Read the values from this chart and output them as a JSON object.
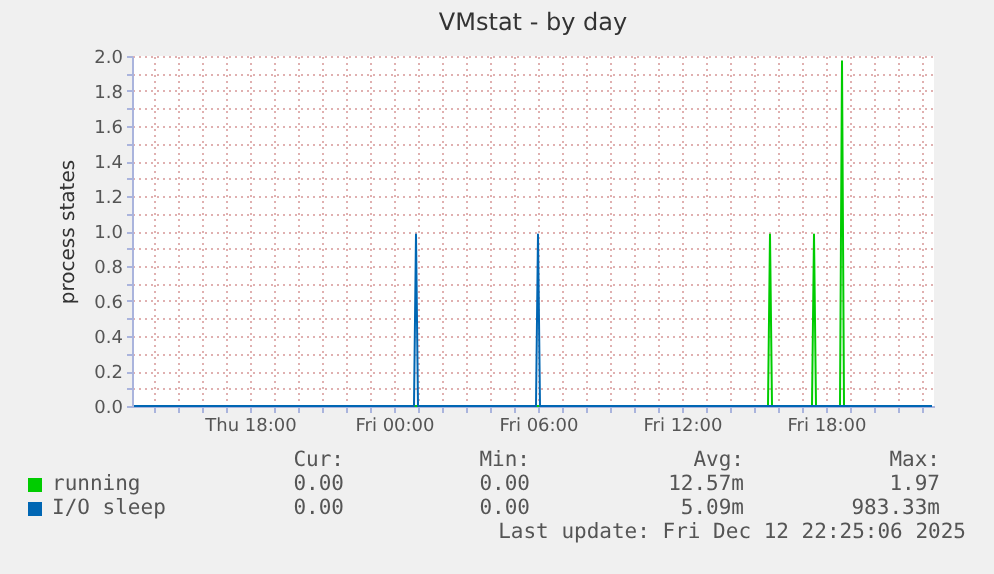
{
  "chart_data": {
    "type": "line",
    "title": "VMstat - by day",
    "ylabel": "process states",
    "xlim": [
      "2025-12-11T13:05",
      "2025-12-12T22:30"
    ],
    "ylim": [
      0,
      2
    ],
    "xticks": [
      {
        "value": "2025-12-11T14:00",
        "label": null
      },
      {
        "value": "2025-12-11T15:00",
        "label": null
      },
      {
        "value": "2025-12-11T16:00",
        "label": null
      },
      {
        "value": "2025-12-11T17:00",
        "label": null
      },
      {
        "value": "2025-12-11T18:00",
        "label": "Thu 18:00"
      },
      {
        "value": "2025-12-11T19:00",
        "label": null
      },
      {
        "value": "2025-12-11T20:00",
        "label": null
      },
      {
        "value": "2025-12-11T21:00",
        "label": null
      },
      {
        "value": "2025-12-11T22:00",
        "label": null
      },
      {
        "value": "2025-12-11T23:00",
        "label": null
      },
      {
        "value": "2025-12-12T00:00",
        "label": "Fri 00:00"
      },
      {
        "value": "2025-12-12T01:00",
        "label": null
      },
      {
        "value": "2025-12-12T02:00",
        "label": null
      },
      {
        "value": "2025-12-12T03:00",
        "label": null
      },
      {
        "value": "2025-12-12T04:00",
        "label": null
      },
      {
        "value": "2025-12-12T05:00",
        "label": null
      },
      {
        "value": "2025-12-12T06:00",
        "label": "Fri 06:00"
      },
      {
        "value": "2025-12-12T07:00",
        "label": null
      },
      {
        "value": "2025-12-12T08:00",
        "label": null
      },
      {
        "value": "2025-12-12T09:00",
        "label": null
      },
      {
        "value": "2025-12-12T10:00",
        "label": null
      },
      {
        "value": "2025-12-12T11:00",
        "label": null
      },
      {
        "value": "2025-12-12T12:00",
        "label": "Fri 12:00"
      },
      {
        "value": "2025-12-12T13:00",
        "label": null
      },
      {
        "value": "2025-12-12T14:00",
        "label": null
      },
      {
        "value": "2025-12-12T15:00",
        "label": null
      },
      {
        "value": "2025-12-12T16:00",
        "label": null
      },
      {
        "value": "2025-12-12T17:00",
        "label": null
      },
      {
        "value": "2025-12-12T18:00",
        "label": "Fri 18:00"
      },
      {
        "value": "2025-12-12T19:00",
        "label": null
      },
      {
        "value": "2025-12-12T20:00",
        "label": null
      },
      {
        "value": "2025-12-12T21:00",
        "label": null
      },
      {
        "value": "2025-12-12T22:00",
        "label": null
      }
    ],
    "yticks": [
      {
        "value": 0,
        "label": "0.0"
      },
      {
        "value": 0.1,
        "label": null
      },
      {
        "value": 0.2,
        "label": "0.2"
      },
      {
        "value": 0.3,
        "label": null
      },
      {
        "value": 0.4,
        "label": "0.4"
      },
      {
        "value": 0.5,
        "label": null
      },
      {
        "value": 0.6,
        "label": "0.6"
      },
      {
        "value": 0.7,
        "label": null
      },
      {
        "value": 0.8,
        "label": "0.8"
      },
      {
        "value": 0.9,
        "label": null
      },
      {
        "value": 1,
        "label": "1.0"
      },
      {
        "value": 1.1,
        "label": null
      },
      {
        "value": 1.2,
        "label": "1.2"
      },
      {
        "value": 1.3,
        "label": null
      },
      {
        "value": 1.4,
        "label": "1.4"
      },
      {
        "value": 1.5,
        "label": null
      },
      {
        "value": 1.6,
        "label": "1.6"
      },
      {
        "value": 1.7,
        "label": null
      },
      {
        "value": 1.8,
        "label": "1.8"
      },
      {
        "value": 1.9,
        "label": null
      },
      {
        "value": 2,
        "label": "2.0"
      }
    ],
    "grid": true,
    "legend": "bottom",
    "marker": "none",
    "line_style": "solid",
    "series": [
      {
        "name": "running",
        "color": "#00cc00",
        "x": [
          "2025-12-11T13:10",
          "2025-12-12T15:35",
          "2025-12-12T15:40",
          "2025-12-12T15:45",
          "2025-12-12T17:25",
          "2025-12-12T17:30",
          "2025-12-12T17:35",
          "2025-12-12T18:35",
          "2025-12-12T18:40",
          "2025-12-12T18:45",
          "2025-12-12T22:25"
        ],
        "values": [
          0,
          0,
          0.98,
          0,
          0,
          0.98,
          0,
          0,
          1.97,
          0,
          0
        ]
      },
      {
        "name": "I/O sleep",
        "color": "#0066b3",
        "x": [
          "2025-12-11T13:10",
          "2025-12-12T00:50",
          "2025-12-12T00:55",
          "2025-12-12T01:00",
          "2025-12-12T05:55",
          "2025-12-12T06:00",
          "2025-12-12T06:05",
          "2025-12-12T22:25"
        ],
        "values": [
          0,
          0,
          0.98,
          0,
          0,
          0.98,
          0,
          0
        ]
      }
    ],
    "annotations": [
      "Cur:",
      "Min:",
      "Avg:",
      "Max:",
      "0.00",
      "0.00",
      "12.57m",
      "1.97",
      "0.00",
      "0.00",
      "5.09m",
      "983.33m",
      "Last update: Fri Dec 12 22:25:06 2025"
    ]
  }
}
